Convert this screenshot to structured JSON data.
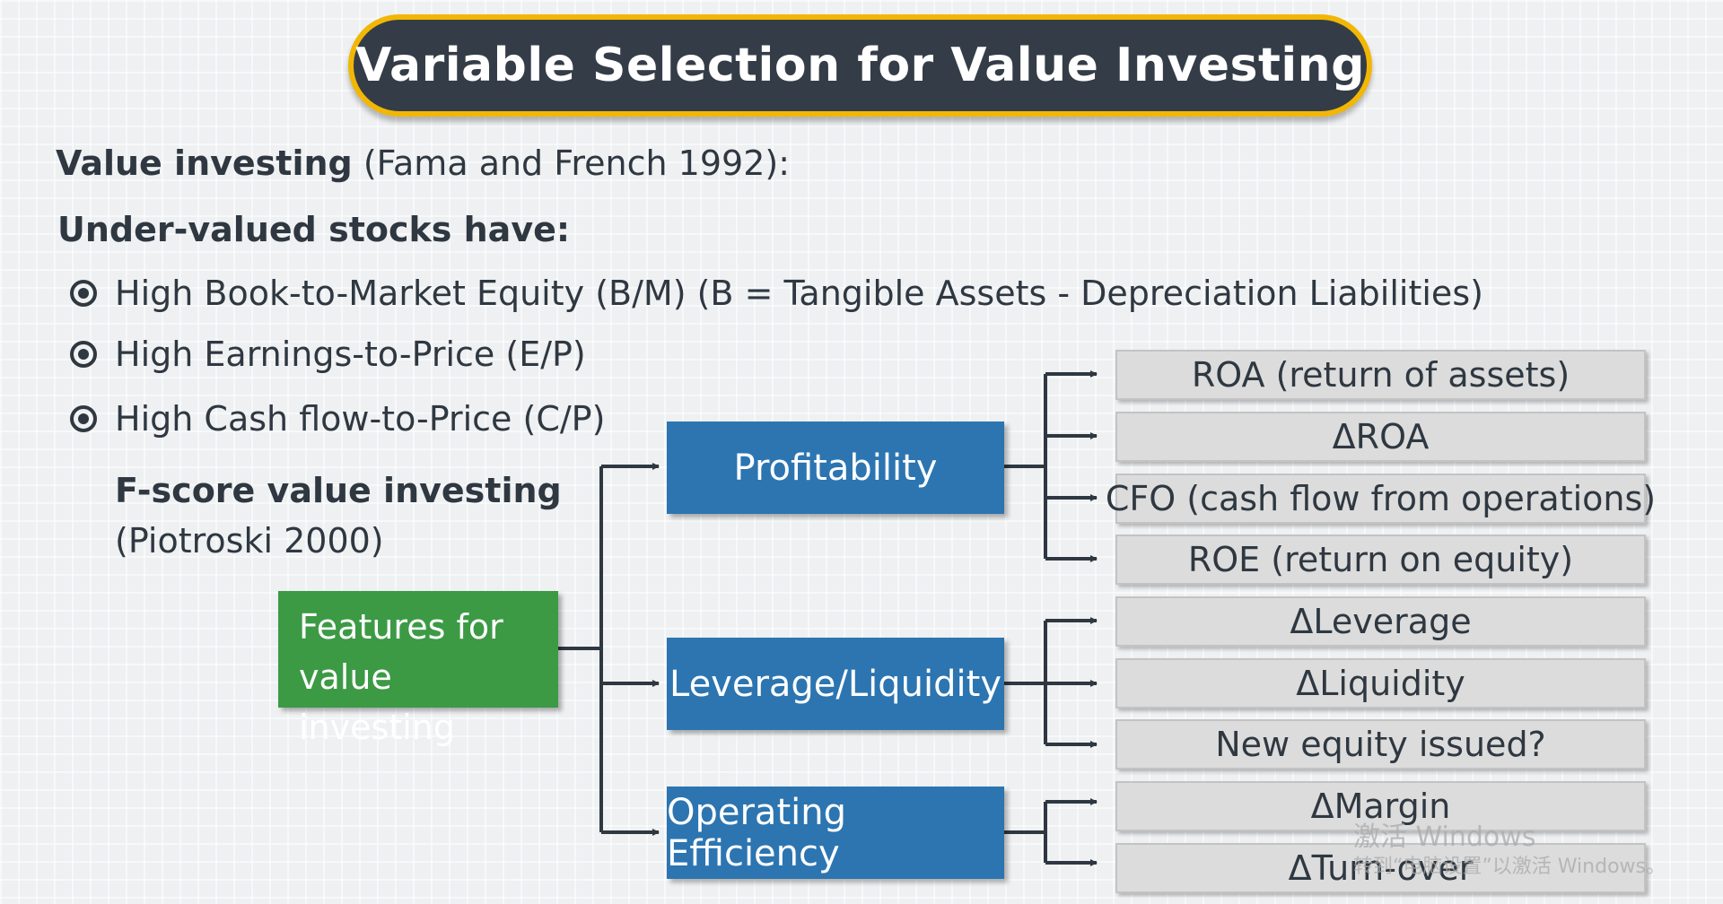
{
  "title": "Variable Selection for Value Investing",
  "intro": {
    "bold": "Value investing",
    "rest": " (Fama and French 1992):"
  },
  "subheading": "Under-valued stocks have:",
  "bullets": [
    "High Book-to-Market Equity (B/M) (B = Tangible Assets - Depreciation Liabilities)",
    "High Earnings-to-Price (E/P)",
    "High Cash flow-to-Price (C/P)"
  ],
  "fscore": {
    "title": "F-score value investing",
    "citation": "(Piotroski 2000)"
  },
  "root": {
    "line1": "Features for",
    "line2": "value investing"
  },
  "categories": [
    {
      "label": "Profitability",
      "features": [
        "ROA (return of assets)",
        "ΔROA",
        "CFO (cash flow from operations)",
        "ROE (return on equity)"
      ]
    },
    {
      "label": "Leverage/Liquidity",
      "features": [
        "ΔLeverage",
        "ΔLiquidity",
        "New equity issued?"
      ]
    },
    {
      "label": "Operating Efficiency",
      "features": [
        "ΔMargin",
        "ΔTurn-over"
      ]
    }
  ],
  "watermark": {
    "line1": "激活 Windows",
    "line2": "转到“电脑设置”以激活 Windows。"
  },
  "colors": {
    "title_bg": "#343d47",
    "title_border": "#f2b705",
    "root_box": "#3c9a45",
    "category_box": "#2c75b1",
    "feature_box": "#dcdcdc",
    "connector": "#2f3841"
  }
}
